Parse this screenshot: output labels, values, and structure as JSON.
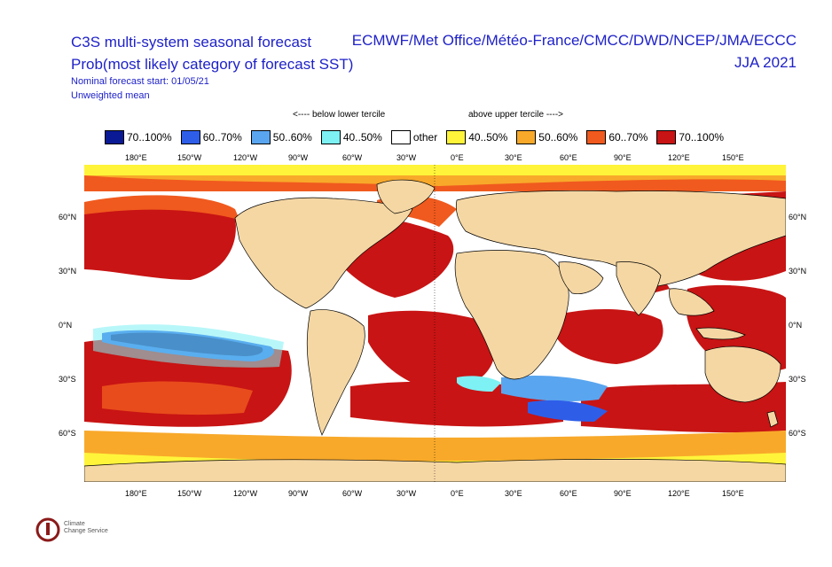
{
  "title": {
    "line1": "C3S multi-system seasonal forecast",
    "line2": "Prob(most likely category of forecast SST)",
    "start": "Nominal forecast start: 01/05/21",
    "mean": "Unweighted mean",
    "models": "ECMWF/Met Office/Météo-France/CMCC/DWD/NCEP/JMA/ECCC",
    "season": "JJA 2021"
  },
  "legend": {
    "below_header": "<---- below lower tercile",
    "above_header": "above upper tercile ---->",
    "items": [
      {
        "label": "70..100%",
        "color": "#0a1a94"
      },
      {
        "label": "60..70%",
        "color": "#2e5ee8"
      },
      {
        "label": "50..60%",
        "color": "#5aa5ef"
      },
      {
        "label": "40..50%",
        "color": "#7df1f4"
      },
      {
        "label": "other",
        "color": "#ffffff"
      },
      {
        "label": "40..50%",
        "color": "#fff43a"
      },
      {
        "label": "50..60%",
        "color": "#f8a92a"
      },
      {
        "label": "60..70%",
        "color": "#f05a1e"
      },
      {
        "label": "70..100%",
        "color": "#c81414"
      }
    ]
  },
  "map": {
    "land_color": "#f5d7a4",
    "lon_ticks": [
      "180°E",
      "150°W",
      "120°W",
      "90°W",
      "60°W",
      "30°W",
      "0°E",
      "30°E",
      "60°E",
      "90°E",
      "120°E",
      "150°E"
    ],
    "lat_ticks_left": [
      "60°N",
      "30°N",
      "0°N",
      "30°S",
      "60°S"
    ],
    "lat_ticks_right": [
      "60°N",
      "30°N",
      "0°N",
      "30°S",
      "60°S"
    ]
  },
  "logo": {
    "name": "Climate Change Service",
    "line1": "Climate",
    "line2": "Change Service"
  }
}
